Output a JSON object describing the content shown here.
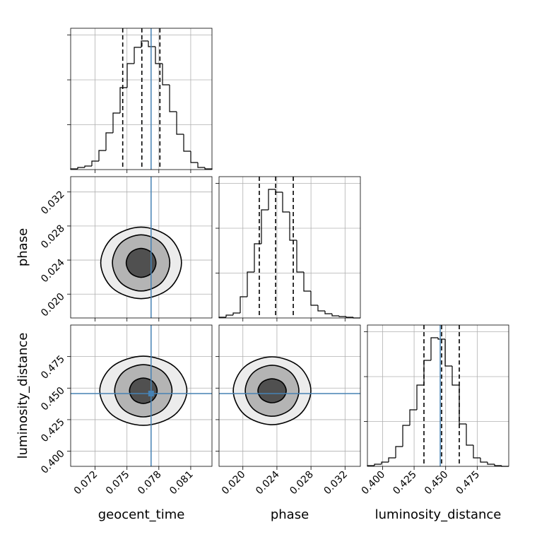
{
  "chart_data": {
    "type": "corner",
    "params": [
      {
        "label": "geocent_time",
        "xlim": [
          0.0697,
          0.083
        ],
        "xticks": [
          0.072,
          0.075,
          0.078,
          0.081
        ],
        "truth": 0.07727,
        "quantiles": [
          0.0746,
          0.0764,
          0.0781
        ],
        "bins": [
          0.0697,
          0.070365,
          0.07103,
          0.071695,
          0.07236,
          0.073025,
          0.07369,
          0.074355,
          0.07502,
          0.075685,
          0.07635,
          0.077015,
          0.07768,
          0.078345,
          0.07901,
          0.079675,
          0.08034,
          0.081005,
          0.08167,
          0.082335,
          0.083
        ],
        "counts": [
          16,
          47,
          79,
          189,
          425,
          819,
          1260,
          1827,
          2363,
          2725,
          2867,
          2741,
          2363,
          1890,
          1292,
          788,
          410,
          158,
          47,
          16
        ]
      },
      {
        "label": "phase",
        "xlim": [
          0.0172,
          0.0338
        ],
        "xticks": [
          {
            "value": 0.02,
            "label": "0.020"
          },
          0.024,
          0.028,
          0.032
        ],
        "quantiles": [
          0.02193,
          0.02385,
          0.02592
        ],
        "bins": [
          0.0172,
          0.01803,
          0.01886,
          0.01969,
          0.02052,
          0.02135,
          0.02218,
          0.02301,
          0.02384,
          0.02467,
          0.0255,
          0.02633,
          0.02716,
          0.02799,
          0.02882,
          0.02965,
          0.03048,
          0.03131,
          0.03214,
          0.03297,
          0.0338
        ],
        "counts": [
          16,
          63,
          110,
          473,
          1024,
          1654,
          2410,
          2867,
          2804,
          2363,
          1733,
          1024,
          599,
          284,
          158,
          95,
          47,
          32,
          16,
          0
        ]
      },
      {
        "label": "luminosity_distance",
        "xlim": [
          0.388,
          0.5
        ],
        "xticks": [
          {
            "value": 0.4,
            "label": "0.400"
          },
          0.425,
          {
            "value": 0.45,
            "label": "0.450"
          },
          0.475
        ],
        "truth": 0.4457,
        "quantiles": [
          0.4328,
          0.4468,
          0.4608
        ],
        "bins": [
          0.388,
          0.3936,
          0.3992,
          0.4048,
          0.4104,
          0.416,
          0.4216,
          0.4272,
          0.4328,
          0.4384,
          0.444,
          0.4496,
          0.4552,
          0.4608,
          0.4664,
          0.472,
          0.4776,
          0.4832,
          0.4888,
          0.4944,
          0.5
        ],
        "counts": [
          16,
          47,
          95,
          189,
          441,
          914,
          1260,
          1811,
          2363,
          2867,
          2835,
          2237,
          1811,
          945,
          473,
          189,
          95,
          47,
          16,
          0
        ]
      }
    ],
    "hist_ylim": [
      0,
      3150
    ],
    "hist_yticks": [
      1000,
      2000,
      3000
    ],
    "pairs": [
      {
        "contours": [
          {
            "x": [
              0.08013,
              0.07902,
              0.07633,
              0.07364,
              0.07253,
              0.07364,
              0.07633,
              0.07902
            ],
            "y": [
              0.02367,
              0.02664,
              0.02787,
              0.02664,
              0.02367,
              0.0207,
              0.01947,
              0.0207
            ]
          },
          {
            "x": [
              0.07903,
              0.07824,
              0.07633,
              0.07442,
              0.07363,
              0.07442,
              0.07633,
              0.07824
            ],
            "y": [
              0.02367,
              0.026,
              0.02697,
              0.026,
              0.02367,
              0.02134,
              0.02037,
              0.02134
            ]
          },
          {
            "x": [
              0.07773,
              0.07732,
              0.07633,
              0.07534,
              0.07493,
              0.07534,
              0.07633,
              0.07732
            ],
            "y": [
              0.02367,
              0.02487,
              0.02537,
              0.02487,
              0.02367,
              0.02247,
              0.02197,
              0.02247
            ]
          }
        ]
      },
      {
        "contours": [
          {
            "x": [
              0.08064,
              0.07944,
              0.07654,
              0.07364,
              0.07244,
              0.07364,
              0.07654,
              0.07944
            ],
            "y": [
              0.4479,
              0.46727,
              0.4753,
              0.46727,
              0.4479,
              0.42853,
              0.4205,
              0.42853
            ]
          },
          {
            "x": [
              0.07924,
              0.07845,
              0.07654,
              0.07463,
              0.07384,
              0.07463,
              0.07654,
              0.07845
            ],
            "y": [
              0.4479,
              0.46254,
              0.4686,
              0.46254,
              0.4479,
              0.43326,
              0.4272,
              0.43326
            ]
          },
          {
            "x": [
              0.07784,
              0.07746,
              0.07654,
              0.07562,
              0.07524,
              0.07562,
              0.07654,
              0.07746
            ],
            "y": [
              0.4479,
              0.45504,
              0.458,
              0.45504,
              0.4479,
              0.44076,
              0.4378,
              0.44076
            ]
          }
        ]
      },
      {
        "contours": [
          {
            "x": [
              0.02799,
              0.02665,
              0.02343,
              0.02021,
              0.01887,
              0.02021,
              0.02343,
              0.02665
            ],
            "y": [
              0.4479,
              0.46692,
              0.4748,
              0.46692,
              0.4479,
              0.42888,
              0.421,
              0.42888
            ]
          },
          {
            "x": [
              0.02658,
              0.02566,
              0.02343,
              0.0212,
              0.02028,
              0.0212,
              0.02343,
              0.02566
            ],
            "y": [
              0.4479,
              0.46218,
              0.4681,
              0.46218,
              0.4479,
              0.43362,
              0.4277,
              0.43362
            ]
          },
          {
            "x": [
              0.02509,
              0.0246,
              0.02343,
              0.02226,
              0.02177,
              0.02226,
              0.02343,
              0.0246
            ],
            "y": [
              0.4479,
              0.45462,
              0.4574,
              0.45462,
              0.4479,
              0.44118,
              0.4384,
              0.44118
            ]
          }
        ]
      }
    ],
    "grid": true,
    "hist_color": "#000000",
    "contour_color": "#000000",
    "truth_color": "#4682b4"
  }
}
